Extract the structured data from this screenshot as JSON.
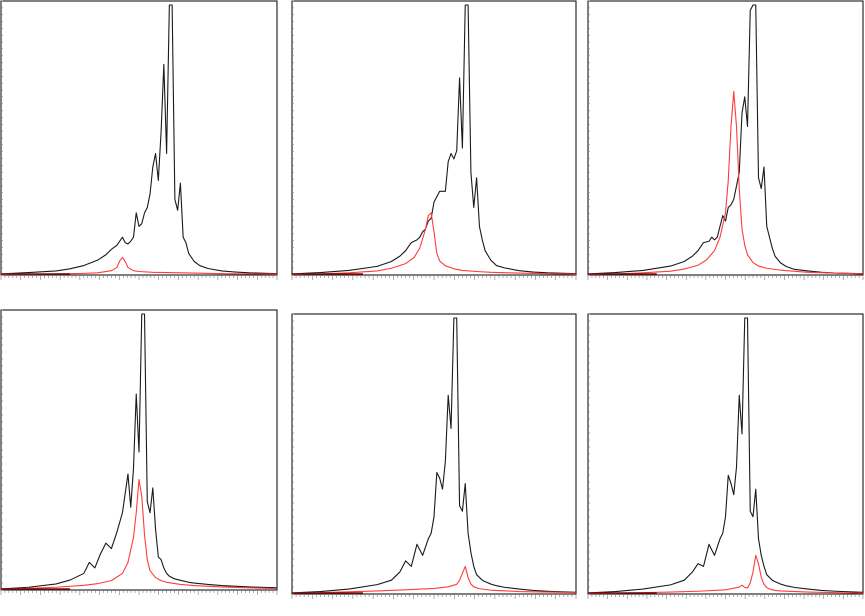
{
  "figure": {
    "description_visible_text": ""
  },
  "colors": {
    "spectrum": "#1a1a1a",
    "component": "#ff3b3b",
    "frame": "#000000",
    "background": "#ffffff"
  },
  "chart_data": [
    {
      "type": "line",
      "title": "",
      "xlabel": "",
      "ylabel": "",
      "xlim": [
        0,
        100
      ],
      "ylim": [
        0,
        100
      ],
      "grid": false,
      "series": [
        {
          "x": [
            0,
            10,
            20,
            25,
            30,
            35,
            38,
            40,
            42,
            44,
            45,
            46,
            47,
            48,
            49,
            50,
            51,
            52,
            53,
            54,
            55,
            56,
            57,
            58,
            59,
            60,
            61,
            62,
            63,
            64,
            65,
            66,
            67,
            68,
            70,
            72,
            75,
            80,
            85,
            90,
            100
          ],
          "y": [
            0.4,
            0.9,
            1.5,
            2.3,
            3.5,
            5.5,
            7.5,
            9.5,
            11,
            14,
            12,
            11.5,
            12.5,
            14,
            23,
            18,
            19,
            23,
            25,
            30,
            40,
            45,
            35,
            53,
            78,
            45,
            100,
            100,
            28,
            24,
            34,
            14,
            12,
            8,
            5,
            3.5,
            2.4,
            1.5,
            1.1,
            0.8,
            0.5
          ]
        },
        {
          "x": [
            0,
            10,
            20,
            30,
            35,
            40,
            42,
            43,
            44,
            45,
            46,
            48,
            50,
            55,
            60,
            70,
            80,
            90,
            100
          ],
          "y": [
            0.2,
            0.3,
            0.4,
            0.6,
            0.8,
            1.6,
            2.8,
            5.2,
            6.5,
            5.0,
            2.8,
            1.6,
            1.3,
            1.0,
            0.9,
            0.7,
            0.5,
            0.4,
            0.3
          ]
        }
      ]
    },
    {
      "type": "line",
      "title": "",
      "xlabel": "",
      "ylabel": "",
      "xlim": [
        0,
        100
      ],
      "ylim": [
        0,
        100
      ],
      "grid": false,
      "series": [
        {
          "x": [
            0,
            10,
            20,
            30,
            35,
            38,
            40,
            42,
            44,
            45,
            46,
            47,
            48,
            49,
            50,
            52,
            54,
            55,
            56,
            57,
            58,
            59,
            60,
            61,
            62,
            63,
            64,
            65,
            66,
            67,
            68,
            70,
            72,
            75,
            80,
            85,
            90,
            100
          ],
          "y": [
            0.4,
            0.9,
            1.7,
            3.2,
            5,
            7,
            9,
            12,
            13,
            14,
            16,
            17,
            20,
            21,
            27,
            31,
            31,
            42,
            45,
            43,
            46,
            73,
            47,
            100,
            100,
            38,
            25,
            36,
            18,
            13,
            9,
            5.5,
            3.5,
            2.6,
            1.6,
            1.1,
            0.8,
            0.5
          ]
        },
        {
          "x": [
            0,
            10,
            20,
            30,
            35,
            40,
            43,
            45,
            47,
            48,
            49,
            50,
            51,
            52,
            54,
            57,
            60,
            65,
            70,
            80,
            90,
            100
          ],
          "y": [
            0.2,
            0.4,
            0.8,
            1.5,
            2.5,
            4.2,
            6.5,
            10,
            17,
            22,
            23,
            16,
            8,
            5.2,
            3.4,
            2.3,
            1.7,
            1.3,
            1.0,
            0.7,
            0.5,
            0.3
          ]
        }
      ]
    },
    {
      "type": "line",
      "title": "",
      "xlabel": "",
      "ylabel": "",
      "xlim": [
        0,
        100
      ],
      "ylim": [
        0,
        100
      ],
      "grid": false,
      "series": [
        {
          "x": [
            0,
            10,
            20,
            30,
            35,
            38,
            40,
            42,
            44,
            45,
            46,
            47,
            48,
            49,
            50,
            51,
            52,
            53,
            54,
            55,
            56,
            57,
            58,
            59,
            60,
            61,
            62,
            63,
            64,
            65,
            66,
            67,
            68,
            70,
            72,
            75,
            80,
            85,
            90,
            100
          ],
          "y": [
            0.4,
            0.9,
            1.7,
            3.3,
            5,
            7,
            9,
            12,
            12.5,
            14,
            13,
            14,
            18,
            22,
            20,
            25,
            26,
            28,
            33,
            38,
            60,
            66,
            55,
            98,
            100,
            100,
            36,
            32,
            40,
            18,
            14,
            10,
            7,
            4.5,
            3.2,
            2.1,
            1.5,
            1.0,
            0.7,
            0.5
          ]
        },
        {
          "x": [
            0,
            10,
            20,
            30,
            35,
            40,
            43,
            46,
            48,
            50,
            51,
            52,
            53,
            54,
            55,
            56,
            57,
            58,
            60,
            62,
            65,
            70,
            80,
            90,
            100
          ],
          "y": [
            0.2,
            0.4,
            0.8,
            1.4,
            2.2,
            3.6,
            5.5,
            9,
            14,
            23,
            35,
            55,
            68,
            55,
            32,
            17,
            11,
            7.5,
            4.6,
            3.3,
            2.5,
            1.8,
            1.0,
            0.7,
            0.4
          ]
        }
      ]
    },
    {
      "type": "line",
      "title": "",
      "xlabel": "",
      "ylabel": "",
      "xlim": [
        0,
        100
      ],
      "ylim": [
        0,
        100
      ],
      "grid": false,
      "series": [
        {
          "x": [
            0,
            10,
            20,
            25,
            30,
            32,
            34,
            36,
            38,
            40,
            42,
            44,
            46,
            47,
            48,
            49,
            50,
            51,
            52,
            53,
            54,
            55,
            56,
            57,
            58,
            59,
            60,
            61,
            62,
            63,
            65,
            68,
            70,
            75,
            80,
            90,
            100
          ],
          "y": [
            0.4,
            1.0,
            2.2,
            3.6,
            6,
            10,
            8,
            13,
            17,
            15,
            21,
            28,
            42,
            30,
            44,
            71,
            50,
            100,
            100,
            32,
            28,
            37,
            22,
            12,
            11,
            8,
            6,
            5,
            4.5,
            4,
            3.5,
            2.8,
            2.5,
            2.0,
            1.6,
            1.1,
            0.8
          ]
        },
        {
          "x": [
            0,
            10,
            20,
            30,
            35,
            40,
            44,
            46,
            48,
            49,
            50,
            51,
            52,
            53,
            54,
            56,
            58,
            60,
            65,
            70,
            80,
            90,
            100
          ],
          "y": [
            0.3,
            0.6,
            1.0,
            1.7,
            2.3,
            3.4,
            6,
            10,
            19,
            28,
            40,
            34,
            20,
            11,
            7,
            4.5,
            3.4,
            2.8,
            2.0,
            1.6,
            1.1,
            0.8,
            0.5
          ]
        }
      ]
    },
    {
      "type": "line",
      "title": "",
      "xlabel": "",
      "ylabel": "",
      "xlim": [
        0,
        100
      ],
      "ylim": [
        0,
        100
      ],
      "grid": false,
      "series": [
        {
          "x": [
            0,
            10,
            20,
            30,
            35,
            38,
            40,
            42,
            44,
            46,
            47,
            48,
            49,
            50,
            51,
            52,
            53,
            54,
            55,
            56,
            57,
            58,
            59,
            60,
            61,
            62,
            63,
            64,
            65,
            66,
            67,
            68,
            70,
            72,
            75,
            80,
            85,
            90,
            100
          ],
          "y": [
            0.4,
            0.9,
            1.8,
            3.4,
            5,
            8,
            12,
            10,
            18,
            14,
            17,
            20,
            22,
            28,
            44,
            42,
            38,
            48,
            72,
            60,
            100,
            100,
            32,
            30,
            40,
            22,
            15,
            10,
            7,
            6,
            5,
            4.5,
            3.6,
            3.0,
            2.4,
            1.8,
            1.3,
            1.0,
            0.6
          ]
        },
        {
          "x": [
            0,
            10,
            20,
            30,
            40,
            50,
            55,
            58,
            59,
            60,
            61,
            62,
            63,
            64,
            66,
            70,
            80,
            90,
            100
          ],
          "y": [
            0.3,
            0.5,
            0.8,
            1.1,
            1.5,
            2.0,
            2.6,
            3.5,
            5,
            7.5,
            10,
            6,
            3.6,
            2.6,
            1.9,
            1.4,
            0.9,
            0.7,
            0.5
          ]
        }
      ]
    },
    {
      "type": "line",
      "title": "",
      "xlabel": "",
      "ylabel": "",
      "xlim": [
        0,
        100
      ],
      "ylim": [
        0,
        100
      ],
      "grid": false,
      "series": [
        {
          "x": [
            0,
            10,
            20,
            30,
            35,
            38,
            40,
            42,
            44,
            46,
            47,
            48,
            49,
            50,
            51,
            52,
            53,
            54,
            55,
            56,
            57,
            58,
            59,
            60,
            61,
            62,
            63,
            64,
            65,
            66,
            67,
            68,
            70,
            72,
            75,
            80,
            85,
            90,
            100
          ],
          "y": [
            0.4,
            0.9,
            1.8,
            3.3,
            5,
            8,
            11,
            10,
            18,
            14,
            17,
            20,
            22,
            28,
            43,
            40,
            36,
            46,
            72,
            58,
            100,
            100,
            30,
            28,
            38,
            20,
            14,
            10,
            7,
            6,
            5,
            4.5,
            3.6,
            3.0,
            2.4,
            1.8,
            1.3,
            1.0,
            0.6
          ]
        },
        {
          "x": [
            0,
            10,
            20,
            30,
            40,
            50,
            55,
            56,
            57,
            58,
            59,
            60,
            61,
            62,
            63,
            64,
            65,
            66,
            68,
            70,
            80,
            90,
            100
          ],
          "y": [
            0.2,
            0.3,
            0.5,
            0.7,
            1.0,
            1.5,
            2.5,
            3.2,
            2.4,
            2.2,
            4,
            8,
            14,
            11,
            6,
            3.5,
            2.3,
            1.8,
            1.3,
            1.1,
            0.7,
            0.5,
            0.3
          ]
        }
      ]
    }
  ]
}
